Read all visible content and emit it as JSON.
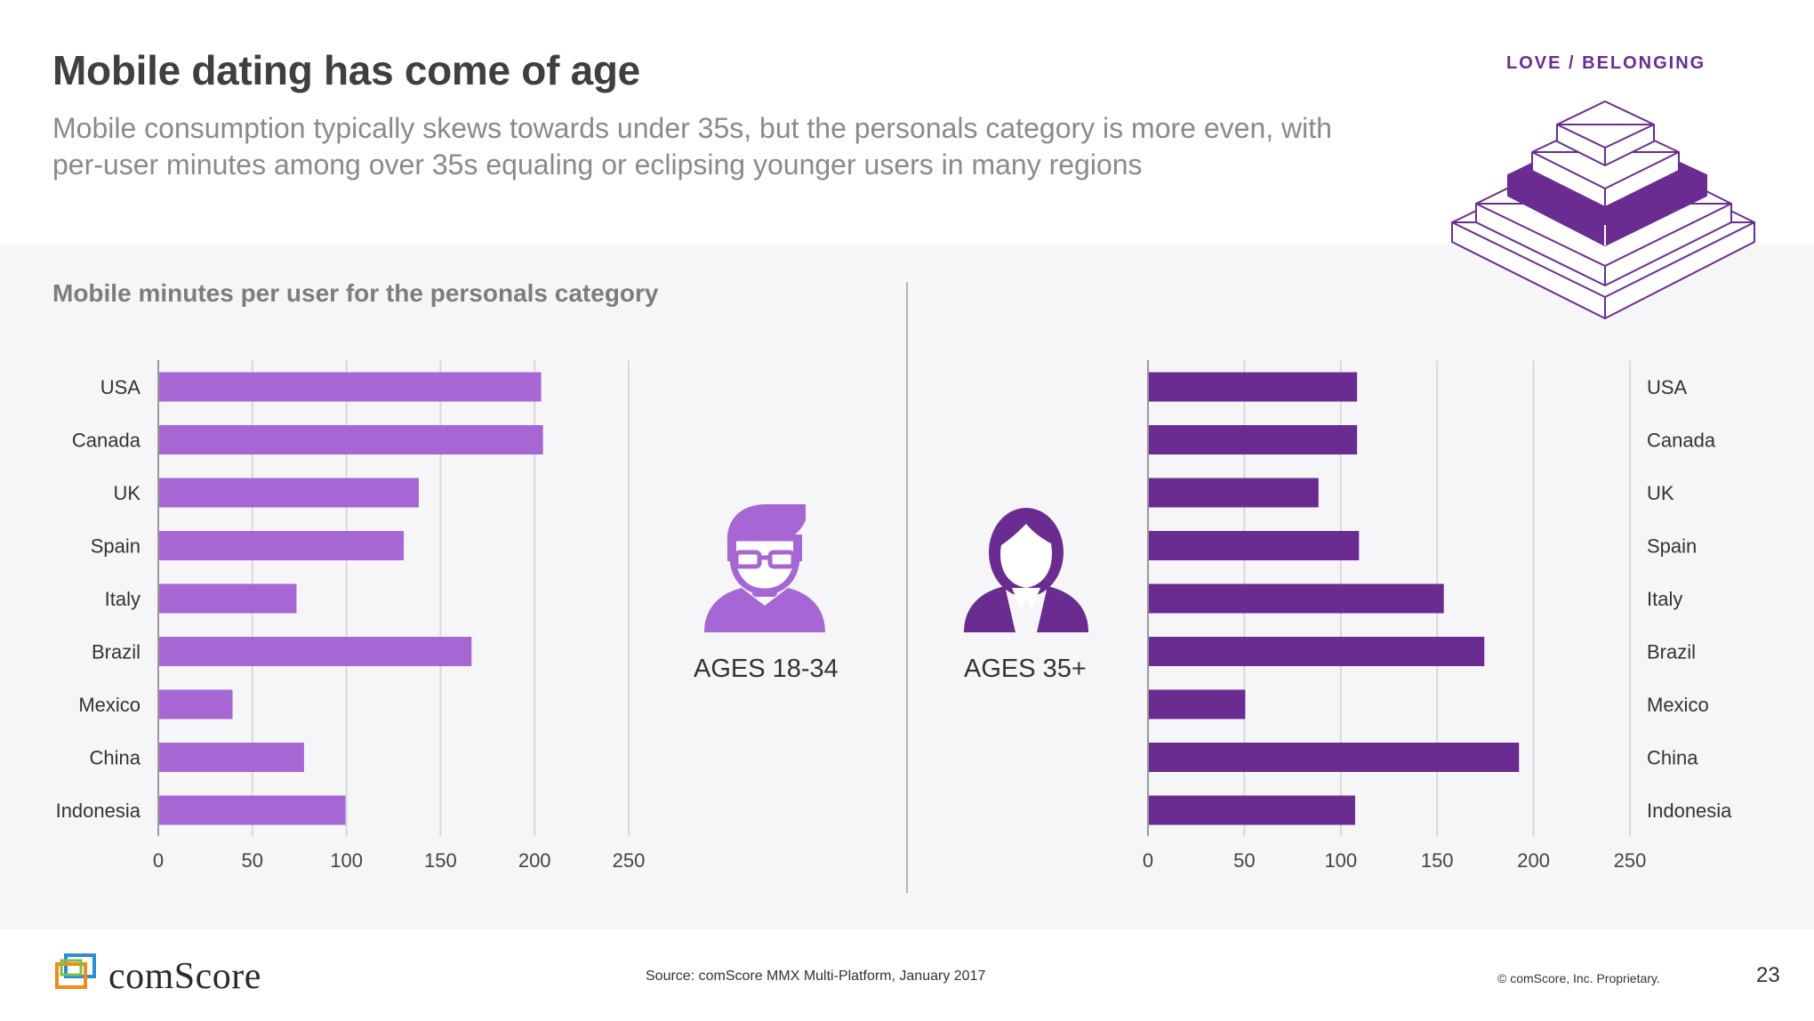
{
  "header": {
    "title": "Mobile dating has come of age",
    "subtitle": "Mobile consumption typically skews towards under 35s, but the personals category is more even, with per-user minutes among over 35s equaling or eclipsing younger users in many regions",
    "category": "LOVE / BELONGING"
  },
  "colors": {
    "young": "#a667d4",
    "older": "#6a2c91",
    "accent": "#6a2c91"
  },
  "personas": {
    "young_label": "AGES 18-34",
    "older_label": "AGES 35+"
  },
  "chart_data": [
    {
      "type": "bar",
      "orientation": "horizontal",
      "title": "Mobile minutes per user for the personals category",
      "series_name": "AGES 18-34",
      "categories": [
        "USA",
        "Canada",
        "UK",
        "Spain",
        "Italy",
        "Brazil",
        "Mexico",
        "China",
        "Indonesia"
      ],
      "values": [
        203,
        204,
        138,
        130,
        73,
        166,
        39,
        77,
        99
      ],
      "xlim": [
        0,
        250
      ],
      "ticks": [
        0,
        50,
        100,
        150,
        200,
        250
      ],
      "grid": true,
      "label_side": "left"
    },
    {
      "type": "bar",
      "orientation": "horizontal",
      "title": "Mobile minutes per user for the personals category",
      "series_name": "AGES 35+",
      "categories": [
        "USA",
        "Canada",
        "UK",
        "Spain",
        "Italy",
        "Brazil",
        "Mexico",
        "China",
        "Indonesia"
      ],
      "values": [
        108,
        108,
        88,
        109,
        153,
        174,
        50,
        192,
        107
      ],
      "xlim": [
        0,
        250
      ],
      "ticks": [
        0,
        50,
        100,
        150,
        200,
        250
      ],
      "grid": true,
      "label_side": "right"
    }
  ],
  "footer": {
    "logo": "comScore",
    "source": "Source: comScore MMX Multi-Platform, January 2017",
    "copyright": "© comScore, Inc. Proprietary.",
    "page_number": "23"
  }
}
